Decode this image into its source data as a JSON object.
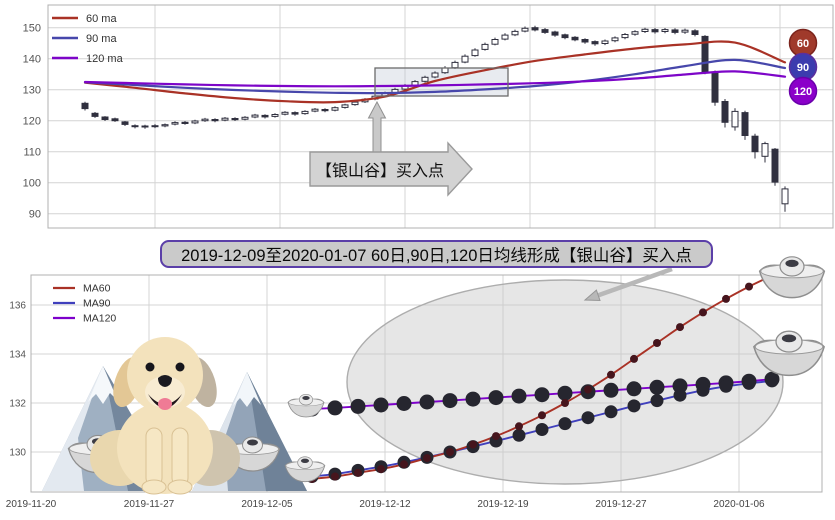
{
  "banner": {
    "text": "2019-12-09至2020-01-07 60日,90日,120日均线形成【银山谷】买入点"
  },
  "top_chart": {
    "y_ticks": [
      150,
      140,
      130,
      120,
      110,
      100,
      90
    ],
    "legend": [
      "60 ma",
      "90 ma",
      "120 ma"
    ]
  },
  "bottom_chart": {
    "y_ticks": [
      136,
      134,
      132,
      130
    ],
    "legend": [
      "MA60",
      "MA90",
      "MA120"
    ]
  },
  "chart_data": [
    {
      "type": "bar",
      "subtype": "candlestick-with-moving-averages",
      "title": "",
      "y_ticks": [
        150,
        140,
        130,
        120,
        110,
        100,
        90
      ],
      "ylim": [
        86,
        157
      ],
      "grid": true,
      "legend_position": "top-left",
      "annotation": "【银山谷】买入点",
      "candle_color": "#30303f",
      "up_style": "hollow",
      "down_style": "filled",
      "candles_order": "open,close,low,high",
      "candles": [
        [
          125.6,
          123.9,
          123.3,
          126.1
        ],
        [
          122.4,
          121.4,
          120.9,
          122.8
        ],
        [
          121.2,
          120.4,
          119.9,
          121.5
        ],
        [
          120.6,
          120.0,
          119.6,
          121.0
        ],
        [
          119.6,
          118.8,
          118.3,
          119.9
        ],
        [
          118.4,
          118.1,
          117.5,
          118.8
        ],
        [
          118.0,
          118.3,
          117.4,
          118.7
        ],
        [
          118.4,
          118.1,
          117.6,
          118.9
        ],
        [
          118.3,
          118.7,
          117.9,
          119.1
        ],
        [
          118.9,
          119.4,
          118.5,
          119.8
        ],
        [
          119.5,
          119.1,
          118.7,
          119.9
        ],
        [
          119.3,
          119.9,
          118.9,
          120.3
        ],
        [
          120.0,
          120.5,
          119.6,
          120.9
        ],
        [
          120.4,
          120.0,
          119.5,
          120.8
        ],
        [
          120.2,
          120.8,
          119.8,
          121.2
        ],
        [
          120.7,
          120.3,
          119.9,
          121.1
        ],
        [
          120.5,
          121.1,
          120.1,
          121.5
        ],
        [
          121.2,
          121.8,
          120.8,
          122.2
        ],
        [
          121.7,
          121.2,
          120.7,
          122.1
        ],
        [
          121.4,
          122.0,
          121.0,
          122.4
        ],
        [
          122.1,
          122.7,
          121.7,
          123.1
        ],
        [
          122.6,
          122.1,
          121.6,
          123.0
        ],
        [
          122.3,
          123.0,
          121.9,
          123.4
        ],
        [
          123.1,
          123.7,
          122.7,
          124.1
        ],
        [
          123.6,
          123.2,
          122.7,
          124.0
        ],
        [
          123.4,
          124.2,
          123.0,
          124.6
        ],
        [
          124.3,
          125.1,
          123.9,
          125.5
        ],
        [
          125.2,
          126.0,
          124.8,
          126.4
        ],
        [
          126.1,
          126.9,
          125.7,
          127.3
        ],
        [
          127.0,
          127.9,
          126.6,
          128.3
        ],
        [
          128.0,
          129.0,
          127.6,
          129.4
        ],
        [
          129.1,
          130.1,
          128.7,
          130.6
        ],
        [
          130.2,
          131.3,
          129.8,
          131.8
        ],
        [
          131.4,
          132.6,
          131.0,
          133.1
        ],
        [
          132.7,
          134.0,
          132.3,
          134.5
        ],
        [
          134.1,
          135.4,
          133.7,
          135.9
        ],
        [
          135.5,
          137.0,
          135.1,
          137.6
        ],
        [
          137.1,
          138.8,
          136.7,
          139.4
        ],
        [
          138.9,
          140.8,
          138.5,
          141.4
        ],
        [
          141.0,
          142.8,
          140.6,
          143.4
        ],
        [
          143.0,
          144.6,
          142.6,
          145.2
        ],
        [
          144.7,
          146.2,
          144.3,
          146.8
        ],
        [
          146.3,
          147.6,
          145.9,
          148.2
        ],
        [
          147.7,
          148.8,
          147.3,
          149.4
        ],
        [
          148.9,
          149.8,
          148.5,
          150.4
        ],
        [
          150.0,
          149.3,
          148.8,
          150.6
        ],
        [
          149.4,
          148.5,
          148.0,
          149.9
        ],
        [
          148.6,
          147.6,
          147.1,
          149.0
        ],
        [
          147.7,
          146.8,
          146.3,
          148.1
        ],
        [
          146.9,
          146.1,
          145.6,
          147.3
        ],
        [
          146.2,
          145.4,
          144.8,
          146.6
        ],
        [
          145.5,
          144.8,
          144.2,
          145.9
        ],
        [
          144.9,
          145.7,
          144.4,
          146.2
        ],
        [
          145.8,
          146.7,
          145.3,
          147.2
        ],
        [
          146.8,
          147.8,
          146.3,
          148.3
        ],
        [
          147.9,
          148.7,
          147.4,
          149.2
        ],
        [
          148.8,
          149.5,
          148.3,
          150.0
        ],
        [
          149.4,
          148.7,
          148.1,
          149.9
        ],
        [
          148.8,
          149.4,
          148.2,
          149.9
        ],
        [
          149.3,
          148.5,
          147.9,
          149.8
        ],
        [
          148.6,
          149.2,
          148.0,
          149.7
        ],
        [
          149.0,
          147.8,
          147.2,
          149.5
        ],
        [
          147.2,
          135.8,
          135.0,
          147.6
        ],
        [
          135.5,
          126.0,
          124.8,
          136.2
        ],
        [
          126.2,
          119.5,
          117.8,
          127.0
        ],
        [
          118.0,
          123.0,
          116.8,
          124.0
        ],
        [
          122.6,
          115.2,
          113.8,
          123.2
        ],
        [
          115.0,
          110.0,
          107.8,
          115.8
        ],
        [
          108.5,
          112.6,
          106.5,
          113.2
        ],
        [
          110.8,
          100.2,
          99.0,
          111.2
        ],
        [
          93.2,
          98.0,
          90.6,
          98.8
        ]
      ],
      "series": [
        {
          "name": "60 ma",
          "color": "#a93226",
          "sample_idx": [
            0,
            5,
            10,
            15,
            20,
            25,
            30,
            35,
            40,
            45,
            50,
            55,
            60,
            65,
            70
          ],
          "values": [
            132.3,
            130.6,
            128.8,
            127.3,
            126.3,
            126.0,
            127.8,
            132.8,
            136.3,
            139.3,
            141.4,
            143.3,
            144.6,
            145.2,
            138.8
          ]
        },
        {
          "name": "90 ma",
          "color": "#4747ab",
          "sample_idx": [
            0,
            5,
            10,
            15,
            20,
            25,
            30,
            35,
            40,
            45,
            50,
            55,
            60,
            65,
            70
          ],
          "values": [
            132.4,
            131.5,
            130.6,
            129.9,
            129.4,
            129.0,
            128.9,
            129.3,
            130.1,
            131.2,
            132.8,
            135.0,
            137.6,
            139.6,
            137.0
          ]
        },
        {
          "name": "120 ma",
          "color": "#7d05c8",
          "sample_idx": [
            0,
            5,
            10,
            15,
            20,
            25,
            30,
            35,
            40,
            45,
            50,
            55,
            60,
            65,
            70
          ],
          "values": [
            132.5,
            132.1,
            131.7,
            131.4,
            131.2,
            131.1,
            131.2,
            131.4,
            131.7,
            132.1,
            132.7,
            133.6,
            134.9,
            135.9,
            134.2
          ]
        }
      ],
      "right_badges": [
        {
          "label": "60",
          "fill": "#a03a2b",
          "ring": "#7c241c"
        },
        {
          "label": "90",
          "fill": "#3c3cae",
          "ring": "#5b2f9e"
        },
        {
          "label": "120",
          "fill": "#8b00c9",
          "ring": "#6a00ab"
        }
      ]
    },
    {
      "type": "line",
      "title": "",
      "x_tick_labels": [
        "2019-11-20",
        "2019-11-27",
        "2019-12-05",
        "2019-12-12",
        "2019-12-19",
        "2019-12-27",
        "2020-01-06"
      ],
      "y_ticks": [
        136,
        134,
        132,
        130
      ],
      "ylim": [
        128.4,
        137.2
      ],
      "grid": true,
      "legend_position": "top-left",
      "dates": [
        "2019-12-09",
        "2019-12-10",
        "2019-12-11",
        "2019-12-12",
        "2019-12-13",
        "2019-12-16",
        "2019-12-17",
        "2019-12-18",
        "2019-12-19",
        "2019-12-20",
        "2019-12-23",
        "2019-12-24",
        "2019-12-25",
        "2019-12-26",
        "2019-12-27",
        "2019-12-30",
        "2019-12-31",
        "2020-01-02",
        "2020-01-03",
        "2020-01-06",
        "2020-01-07"
      ],
      "series": [
        {
          "name": "MA60",
          "color": "#a93226",
          "marker_size": 4,
          "marker_color": "#46151d",
          "values": [
            128.9,
            129.0,
            129.15,
            129.3,
            129.5,
            129.75,
            130.0,
            130.3,
            130.65,
            131.05,
            131.5,
            132.0,
            132.55,
            133.15,
            133.8,
            134.45,
            135.1,
            135.7,
            136.25,
            136.75,
            137.2
          ]
        },
        {
          "name": "MA90",
          "color": "#4040bd",
          "marker_size": 6.5,
          "marker_color": "#26262f",
          "values": [
            129.0,
            129.1,
            129.25,
            129.4,
            129.58,
            129.78,
            130.0,
            130.22,
            130.45,
            130.68,
            130.92,
            131.16,
            131.4,
            131.64,
            131.88,
            132.1,
            132.32,
            132.52,
            132.68,
            132.8,
            132.9
          ]
        },
        {
          "name": "MA120",
          "color": "#7d00cb",
          "marker_size": 7.5,
          "marker_color": "#26262f",
          "values": [
            131.75,
            131.8,
            131.86,
            131.92,
            131.98,
            132.04,
            132.1,
            132.16,
            132.22,
            132.28,
            132.34,
            132.4,
            132.46,
            132.52,
            132.58,
            132.64,
            132.7,
            132.76,
            132.82,
            132.89,
            132.97
          ]
        }
      ],
      "decorations": [
        "highlight-ellipse",
        "guide-arrow",
        "golden-retriever-dog",
        "snow-mountains",
        "silver-ingots"
      ]
    }
  ]
}
